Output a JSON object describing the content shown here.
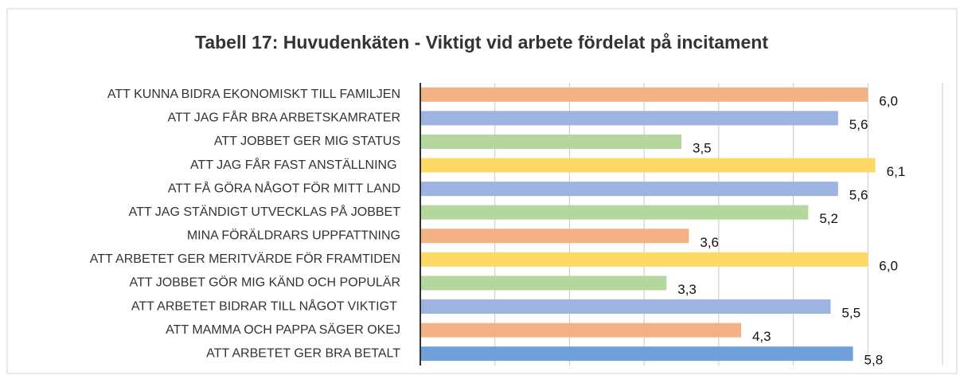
{
  "chart_data": {
    "type": "barh",
    "title": "Tabell 17: Huvudenkäten - Viktigt vid arbete fördelat på incitament",
    "categories": [
      "ATT KUNNA BIDRA EKONOMISKT TILL FAMILJEN",
      "ATT JAG FÅR BRA ARBETSKAMRATER",
      "ATT JOBBET GER MIG STATUS",
      "ATT JAG FÅR FAST ANSTÄLLNING ",
      "ATT FÅ GÖRA NÅGOT FÖR MITT LAND",
      "ATT JAG STÄNDIGT UTVECKLAS PÅ JOBBET",
      "MINA FÖRÄLDRARS UPPFATTNING",
      "ATT ARBETET GER MERITVÄRDE FÖR FRAMTIDEN",
      "ATT JOBBET GÖR MIG KÄND OCH POPULÄR",
      "ATT ARBETET BIDRAR TILL NÅGOT VIKTIGT ",
      "ATT MAMMA OCH PAPPA SÄGER OKEJ",
      "ATT ARBETET GER BRA BETALT"
    ],
    "values": [
      6.0,
      5.6,
      3.5,
      6.1,
      5.6,
      5.2,
      3.6,
      6.0,
      3.3,
      5.5,
      4.3,
      5.8
    ],
    "value_labels": [
      "6,0",
      "5,6",
      "3,5",
      "6,1",
      "5,6",
      "5,2",
      "3,6",
      "6,0",
      "3,3",
      "5,5",
      "4,3",
      "5,8"
    ],
    "colors": [
      "#f4b183",
      "#9db3e0",
      "#b4d79d",
      "#ffd966",
      "#9db3e0",
      "#b4d79d",
      "#f4b183",
      "#ffd966",
      "#b4d79d",
      "#9db3e0",
      "#f4b183",
      "#6fa0dc"
    ],
    "xlim": [
      0,
      7
    ],
    "xticks": [
      0,
      1,
      2,
      3,
      4,
      5,
      6,
      7
    ],
    "grid": true
  }
}
